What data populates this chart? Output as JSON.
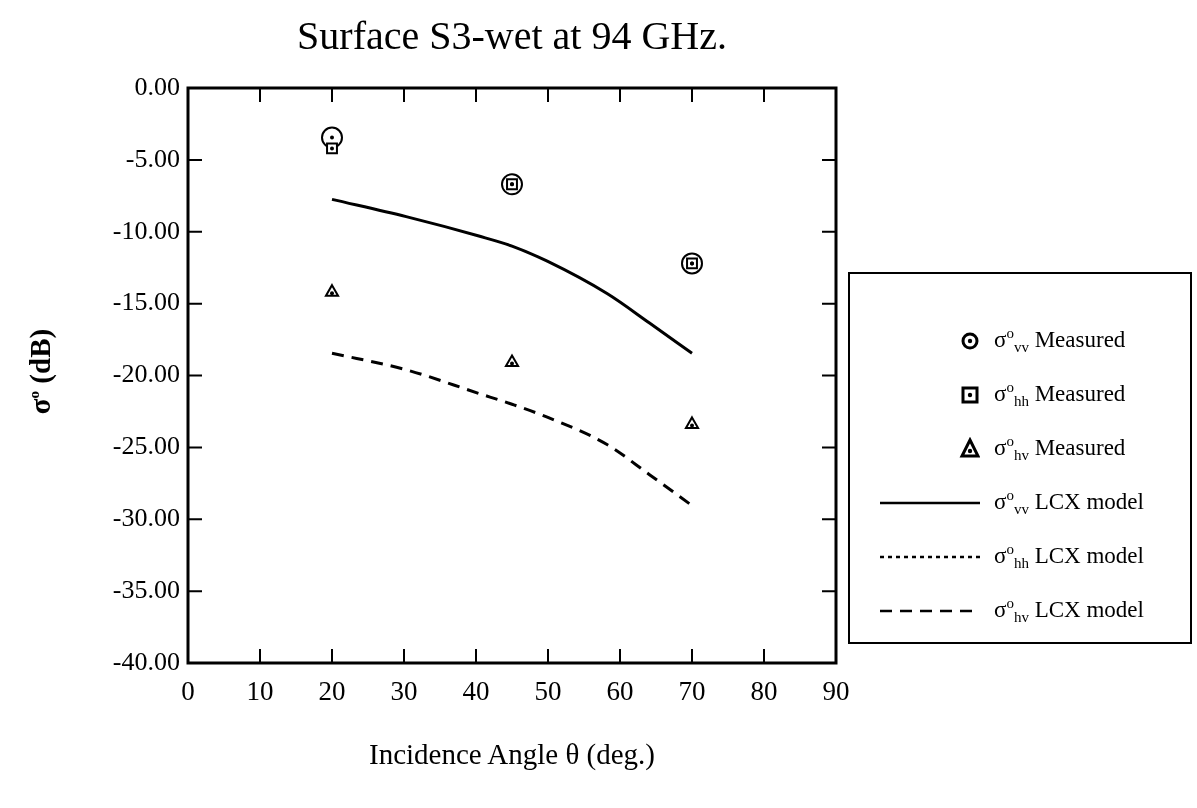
{
  "chart_data": {
    "type": "scatter",
    "title": "Surface S3-wet at 94 GHz.",
    "xlabel": "Incidence Angle θ  (deg.)",
    "ylabel": "σ$^{o}$  (dB)",
    "x": [
      20,
      45,
      70
    ],
    "series": [
      {
        "name": "σ$^{o}$$_{vv}$ Measured",
        "color": "#000000",
        "marker": "circle",
        "values": [
          -3.45,
          -6.7,
          -12.2
        ]
      },
      {
        "name": "σ$^{o}$$_{hh}$ Measured",
        "color": "#000000",
        "marker": "square",
        "values": [
          -4.2,
          -6.7,
          -12.2
        ]
      },
      {
        "name": "σ$^{o}$$_{hv}$ Measured",
        "color": "#000000",
        "marker": "triangle",
        "values": [
          -14.2,
          -19.1,
          -23.4
        ]
      },
      {
        "name": "σ$^{o}$$_{vv}$ LCX model",
        "type": "line",
        "color": "#000000",
        "marker": "none",
        "line_style": "solid",
        "x": [
          20,
          30.3,
          40.4,
          45,
          49.9,
          58.2,
          64.1,
          70
        ],
        "values": [
          -7.75,
          -8.95,
          -10.3,
          -11.0,
          -12.05,
          -14.3,
          -16.35,
          -18.45
        ]
      },
      {
        "name": "σ$^{o}$$_{hh}$ LCX model",
        "type": "line",
        "color": "#000000",
        "marker": "none",
        "line_style": "dotted",
        "values": [
          null,
          null,
          null
        ]
      },
      {
        "name": "σ$^{o}$$_{hv}$ LCX model",
        "type": "line",
        "color": "#000000",
        "marker": "none",
        "line_style": "dashed",
        "x": [
          20,
          30.3,
          40.4,
          45,
          49.9,
          58.2,
          64.1,
          70
        ],
        "values": [
          -18.45,
          -19.6,
          -21.25,
          -22.0,
          -22.9,
          -24.8,
          -26.9,
          -29.05
        ]
      }
    ],
    "xlim": [
      0,
      90
    ],
    "xticks": [
      0,
      10,
      20,
      30,
      40,
      50,
      60,
      70,
      80,
      90
    ],
    "ylim": [
      -40,
      0
    ],
    "yticks": [
      {
        "value": 0,
        "label": "0.00"
      },
      {
        "value": -5,
        "label": "-5.00"
      },
      {
        "value": -10,
        "label": "-10.00"
      },
      {
        "value": -15,
        "label": "-15.00"
      },
      {
        "value": -20,
        "label": "-20.00"
      },
      {
        "value": -25,
        "label": "-25.00"
      },
      {
        "value": -30,
        "label": "-30.00"
      },
      {
        "value": -35,
        "label": "-35.00"
      },
      {
        "value": -40,
        "label": "-40.00"
      }
    ],
    "grid": false,
    "legend": "right"
  }
}
